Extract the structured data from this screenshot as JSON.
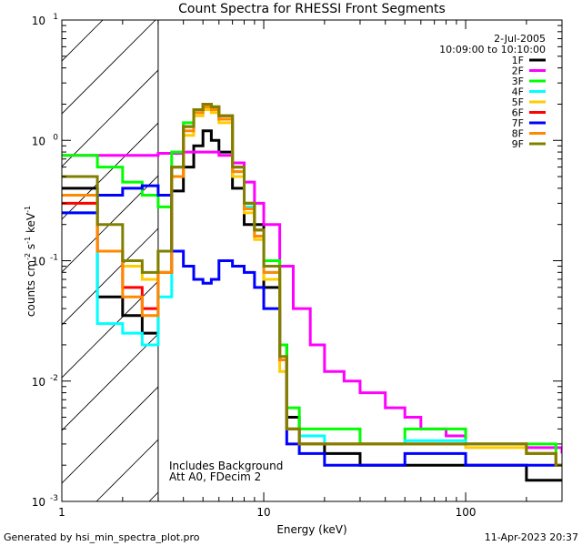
{
  "chart_data": {
    "type": "line",
    "title": "Count Spectra for RHESSI Front Segments",
    "xlabel": "Energy (keV)",
    "ylabel_parts": {
      "pre": "counts cm",
      "e1": "-2",
      "mid": " s",
      "e2": "-1",
      "post": " keV",
      "e3": "-1"
    },
    "xscale": "log",
    "yscale": "log",
    "xlim": [
      1,
      300
    ],
    "ylim": [
      0.001,
      10
    ],
    "x_ticks": [
      {
        "value": 1,
        "label": "1"
      },
      {
        "value": 10,
        "label": "10"
      },
      {
        "value": 100,
        "label": "100"
      }
    ],
    "y_ticks": [
      {
        "value": 0.001,
        "base": "10",
        "exp": "-3"
      },
      {
        "value": 0.01,
        "base": "10",
        "exp": "-2"
      },
      {
        "value": 0.1,
        "base": "10",
        "exp": "-1"
      },
      {
        "value": 1,
        "base": "10",
        "exp": "0"
      },
      {
        "value": 10,
        "base": "10",
        "exp": "1"
      }
    ],
    "hatched_region_x": [
      1,
      3
    ],
    "date": "2-Jul-2005",
    "time_range": "10:09:00 to 10:10:00",
    "annotations": [
      "Includes Background",
      "Att A0, FDecim 2"
    ],
    "legend_position": "top-right",
    "series": [
      {
        "name": "1F",
        "color": "#000000",
        "x": [
          1,
          1.5,
          2,
          2.5,
          3,
          3.5,
          4,
          4.5,
          5,
          5.5,
          6,
          7,
          8,
          10,
          12,
          13,
          15,
          20,
          30,
          50,
          100,
          200,
          280
        ],
        "y": [
          0.4,
          0.05,
          0.035,
          0.025,
          0.12,
          0.38,
          0.6,
          0.9,
          1.2,
          1.0,
          0.8,
          0.4,
          0.2,
          0.06,
          0.02,
          0.005,
          0.003,
          0.0025,
          0.002,
          0.002,
          0.002,
          0.0015,
          0.0015
        ]
      },
      {
        "name": "2F",
        "color": "#ff00ff",
        "x": [
          1,
          1.5,
          2,
          2.5,
          3,
          4,
          5,
          6,
          7,
          8,
          9,
          10,
          12,
          14,
          17,
          20,
          25,
          30,
          40,
          50,
          60,
          80,
          100,
          150,
          200,
          250,
          300
        ],
        "y": [
          0.75,
          0.75,
          0.75,
          0.75,
          0.78,
          0.8,
          0.8,
          0.75,
          0.65,
          0.45,
          0.3,
          0.2,
          0.09,
          0.04,
          0.02,
          0.012,
          0.01,
          0.008,
          0.006,
          0.005,
          0.004,
          0.0035,
          0.003,
          0.003,
          0.0028,
          0.0028,
          0.0025
        ]
      },
      {
        "name": "3F",
        "color": "#00ff00",
        "x": [
          1,
          1.5,
          2,
          2.5,
          3,
          3.5,
          4,
          4.5,
          5,
          5.5,
          6,
          7,
          8,
          9,
          10,
          12,
          13,
          15,
          20,
          30,
          50,
          100,
          200,
          280
        ],
        "y": [
          0.75,
          0.6,
          0.45,
          0.35,
          0.28,
          0.8,
          1.4,
          1.8,
          2.0,
          1.9,
          1.6,
          0.6,
          0.3,
          0.18,
          0.1,
          0.02,
          0.006,
          0.004,
          0.004,
          0.003,
          0.004,
          0.003,
          0.003,
          0.002
        ]
      },
      {
        "name": "4F",
        "color": "#00ffff",
        "x": [
          1,
          1.5,
          2,
          2.5,
          3,
          3.5,
          4,
          4.5,
          5,
          5.5,
          6,
          7,
          8,
          9,
          10,
          12,
          13,
          15,
          20,
          30,
          50,
          100,
          200,
          280
        ],
        "y": [
          0.25,
          0.03,
          0.025,
          0.02,
          0.05,
          0.6,
          1.3,
          1.7,
          1.9,
          1.8,
          1.5,
          0.55,
          0.28,
          0.16,
          0.08,
          0.015,
          0.004,
          0.0035,
          0.003,
          0.003,
          0.0032,
          0.003,
          0.0025,
          0.002
        ]
      },
      {
        "name": "5F",
        "color": "#ffcc00",
        "x": [
          1,
          1.5,
          2,
          2.5,
          3,
          3.5,
          4,
          4.5,
          5,
          5.5,
          6,
          7,
          8,
          9,
          10,
          12,
          13,
          15,
          20,
          30,
          50,
          100,
          200,
          280
        ],
        "y": [
          0.3,
          0.12,
          0.09,
          0.07,
          0.12,
          0.5,
          1.1,
          1.6,
          1.8,
          1.7,
          1.4,
          0.5,
          0.25,
          0.15,
          0.07,
          0.012,
          0.004,
          0.003,
          0.003,
          0.003,
          0.003,
          0.0028,
          0.0025,
          0.002
        ]
      },
      {
        "name": "6F",
        "color": "#ff0000",
        "x": [
          1,
          1.5,
          2,
          2.5,
          3,
          3.5,
          4,
          4.5,
          5,
          5.5,
          6,
          7,
          8,
          9,
          10,
          12,
          13,
          15,
          20,
          30,
          50,
          100,
          200,
          280
        ],
        "y": [
          0.3,
          0.12,
          0.06,
          0.04,
          0.08,
          0.6,
          1.3,
          1.8,
          2.0,
          1.9,
          1.6,
          0.6,
          0.3,
          0.18,
          0.09,
          0.015,
          0.004,
          0.003,
          0.003,
          0.003,
          0.003,
          0.003,
          0.0025,
          0.002
        ]
      },
      {
        "name": "7F",
        "color": "#0000ff",
        "x": [
          1,
          1.5,
          2,
          2.5,
          3,
          3.5,
          4,
          4.5,
          5,
          5.5,
          6,
          7,
          8,
          9,
          10,
          12,
          13,
          15,
          20,
          30,
          50,
          100,
          200,
          280
        ],
        "y": [
          0.25,
          0.35,
          0.4,
          0.42,
          0.35,
          0.12,
          0.09,
          0.07,
          0.065,
          0.07,
          0.1,
          0.09,
          0.08,
          0.06,
          0.04,
          0.015,
          0.003,
          0.0025,
          0.002,
          0.002,
          0.0025,
          0.002,
          0.002,
          0.002
        ]
      },
      {
        "name": "8F",
        "color": "#ff8800",
        "x": [
          1,
          1.5,
          2,
          2.5,
          3,
          3.5,
          4,
          4.5,
          5,
          5.5,
          6,
          7,
          8,
          9,
          10,
          12,
          13,
          15,
          20,
          30,
          50,
          100,
          200,
          280
        ],
        "y": [
          0.35,
          0.12,
          0.05,
          0.035,
          0.08,
          0.5,
          1.2,
          1.7,
          1.9,
          1.8,
          1.5,
          0.55,
          0.27,
          0.16,
          0.08,
          0.015,
          0.004,
          0.003,
          0.003,
          0.003,
          0.003,
          0.003,
          0.0025,
          0.002
        ]
      },
      {
        "name": "9F",
        "color": "#808000",
        "x": [
          1,
          1.5,
          2,
          2.5,
          3,
          3.5,
          4,
          4.5,
          5,
          5.5,
          6,
          7,
          8,
          9,
          10,
          12,
          13,
          15,
          20,
          30,
          50,
          100,
          200,
          280
        ],
        "y": [
          0.5,
          0.2,
          0.1,
          0.08,
          0.12,
          0.6,
          1.3,
          1.8,
          2.0,
          1.9,
          1.6,
          0.6,
          0.3,
          0.18,
          0.09,
          0.016,
          0.004,
          0.003,
          0.003,
          0.003,
          0.003,
          0.003,
          0.0025,
          0.002
        ]
      }
    ]
  },
  "footer": {
    "generated_by": "Generated by hsi_min_spectra_plot.pro",
    "timestamp": "11-Apr-2023 20:37"
  }
}
